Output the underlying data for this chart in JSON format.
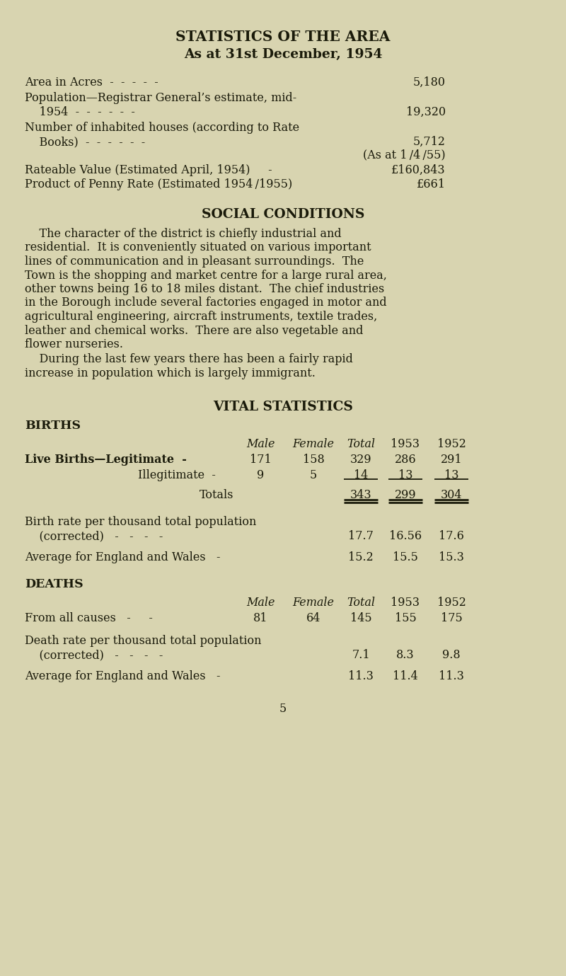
{
  "bg_color": "#d8d4b0",
  "text_color": "#1a1a0a",
  "title1": "STATISTICS OF THE AREA",
  "title2": "As at 31st December, 1954",
  "page_num": "5"
}
